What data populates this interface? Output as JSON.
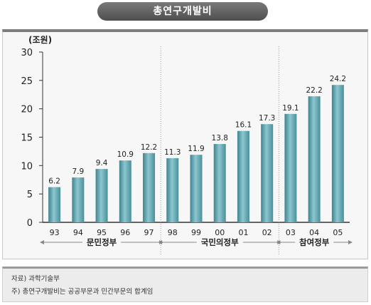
{
  "chart_data": {
    "type": "bar",
    "title": "총연구개발비",
    "unit_label": "(조원)",
    "categories": [
      "93",
      "94",
      "95",
      "96",
      "97",
      "98",
      "99",
      "00",
      "01",
      "02",
      "03",
      "04",
      "05"
    ],
    "values": [
      6.2,
      7.9,
      9.4,
      10.9,
      12.2,
      11.3,
      11.9,
      13.8,
      16.1,
      17.3,
      19.1,
      22.2,
      24.2
    ],
    "value_labels": [
      "6.2",
      "7.9",
      "9.4",
      "10.9",
      "12.2",
      "11.3",
      "11.9",
      "13.8",
      "16.1",
      "17.3",
      "19.1",
      "22.2",
      "24.2"
    ],
    "ylim": [
      0,
      30
    ],
    "yticks": [
      0,
      5,
      10,
      15,
      20,
      25,
      30
    ],
    "groups": [
      {
        "name": "문민정부",
        "start": 0,
        "end": 4
      },
      {
        "name": "국민의정부",
        "start": 5,
        "end": 9
      },
      {
        "name": "참여정부",
        "start": 10,
        "end": 12
      }
    ],
    "grid": false,
    "bar_color": "#5fa4b0"
  },
  "notes": {
    "source": "자료) 과학기술부",
    "footnote": "주) 총연구개발비는 공공부문과 민간부문의 합계임"
  }
}
